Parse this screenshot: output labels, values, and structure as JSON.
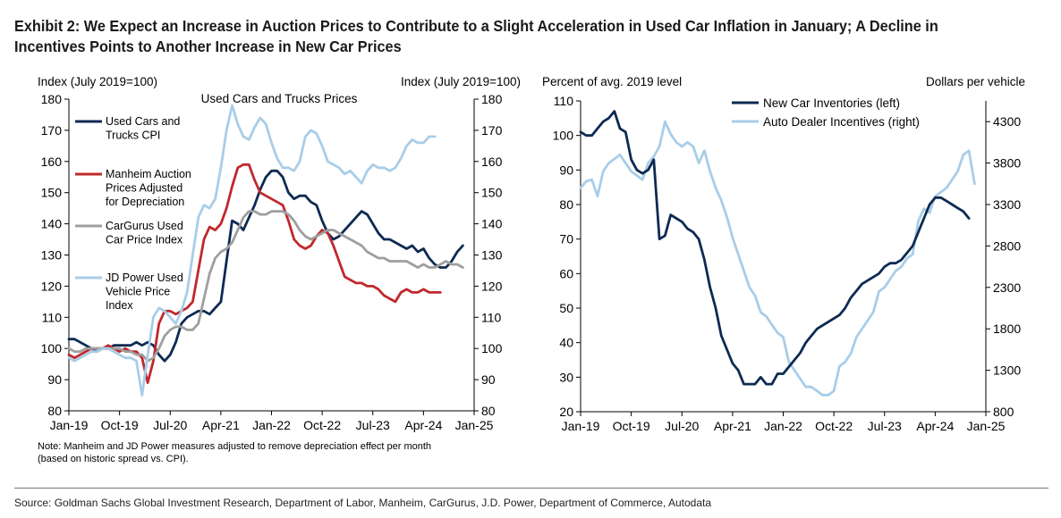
{
  "title": "Exhibit 2: We Expect an Increase in Auction Prices to Contribute to a Slight Acceleration in Used Car Inflation in January; A Decline in Incentives Points to Another Increase in New Car Prices",
  "source": "Source: Goldman Sachs Global Investment Research, Department of Labor, Manheim, CarGurus, J.D. Power, Department of Commerce, Autodata",
  "colors": {
    "navy": "#0d2a52",
    "red": "#c0282d",
    "gray": "#9f9f9f",
    "light_blue": "#a8cde8"
  },
  "chart_data": [
    {
      "type": "line",
      "title": "Used Cars and Trucks Prices",
      "ylabel_left": "Index (July 2019=100)",
      "ylabel_right": "Index (July 2019=100)",
      "ylim": [
        80,
        180
      ],
      "yticks": [
        80,
        90,
        100,
        110,
        120,
        130,
        140,
        150,
        160,
        170,
        180
      ],
      "xlim": [
        "2019-01",
        "2025-01"
      ],
      "xticks": [
        "Jan-19",
        "Oct-19",
        "Jul-20",
        "Apr-21",
        "Jan-22",
        "Oct-22",
        "Jul-23",
        "Apr-24",
        "Jan-25"
      ],
      "note_lines": [
        "Note: Manheim and JD Power measures adjusted to remove depreciation effect per month",
        "(based on historic spread vs. CPI)."
      ],
      "series": [
        {
          "name": "Used Cars and Trucks CPI",
          "legend_lines": [
            "Used Cars and",
            "Trucks CPI"
          ],
          "color": "#0d2a52",
          "start": "2019-01",
          "freq": "monthly",
          "values": [
            103,
            103,
            102,
            101,
            100,
            99,
            100,
            100,
            101,
            101,
            101,
            101,
            102,
            101,
            102,
            101,
            98,
            96,
            98,
            102,
            108,
            110,
            111,
            112,
            112,
            111,
            113,
            115,
            128,
            141,
            140,
            138,
            142,
            146,
            151,
            155,
            157,
            157,
            155,
            150,
            148,
            149,
            149,
            147,
            146,
            141,
            137,
            135,
            136,
            138,
            140,
            142,
            144,
            143,
            140,
            137,
            135,
            135,
            134,
            133,
            132,
            133,
            131,
            132,
            129,
            127,
            126,
            126,
            128,
            131,
            133
          ]
        },
        {
          "name": "Manheim Auction Prices Adjusted for Depreciation",
          "legend_lines": [
            "Manheim Auction",
            "Prices Adjusted",
            "for Depreciation"
          ],
          "color": "#c0282d",
          "start": "2019-01",
          "freq": "monthly",
          "values": [
            98,
            97,
            98,
            99,
            100,
            100,
            100,
            101,
            100,
            99,
            100,
            99,
            99,
            97,
            89,
            96,
            108,
            112,
            112,
            111,
            112,
            113,
            115,
            125,
            135,
            139,
            138,
            140,
            145,
            152,
            158,
            159,
            159,
            154,
            150,
            149,
            148,
            147,
            146,
            141,
            135,
            133,
            132,
            133,
            136,
            138,
            137,
            133,
            128,
            123,
            122,
            121,
            121,
            120,
            120,
            119,
            117,
            116,
            115,
            118,
            119,
            118,
            118,
            119,
            118,
            118,
            118
          ]
        },
        {
          "name": "CarGurus Used Car Price Index",
          "legend_lines": [
            "CarGurus Used",
            "Car Price Index"
          ],
          "color": "#9f9f9f",
          "start": "2019-01",
          "freq": "monthly",
          "values": [
            100,
            99,
            99,
            100,
            100,
            100,
            100,
            100,
            100,
            100,
            99,
            99,
            98,
            98,
            96,
            97,
            100,
            104,
            106,
            107,
            107,
            106,
            106,
            108,
            116,
            124,
            129,
            131,
            132,
            134,
            138,
            142,
            144,
            144,
            143,
            143,
            144,
            144,
            144,
            143,
            141,
            138,
            136,
            135,
            136,
            137,
            138,
            138,
            137,
            136,
            135,
            134,
            133,
            131,
            130,
            129,
            129,
            128,
            128,
            128,
            128,
            127,
            126,
            127,
            126,
            126,
            127,
            128,
            127,
            127,
            126
          ]
        },
        {
          "name": "JD Power Used Vehicle Price Index",
          "legend_lines": [
            "JD Power Used",
            "Vehicle Price",
            "Index"
          ],
          "color": "#a8cde8",
          "start": "2019-01",
          "freq": "monthly",
          "values": [
            97,
            96,
            97,
            98,
            99,
            99,
            100,
            100,
            99,
            98,
            97,
            97,
            96,
            85,
            98,
            110,
            113,
            112,
            110,
            108,
            112,
            118,
            130,
            142,
            146,
            145,
            148,
            158,
            170,
            178,
            172,
            168,
            167,
            171,
            174,
            172,
            166,
            161,
            158,
            158,
            157,
            160,
            168,
            170,
            169,
            165,
            160,
            159,
            158,
            156,
            157,
            155,
            153,
            157,
            159,
            158,
            158,
            157,
            158,
            161,
            165,
            167,
            166,
            166,
            168,
            168
          ]
        }
      ]
    },
    {
      "type": "line",
      "ylabel_left": "Percent of avg. 2019 level",
      "ylabel_right": "Dollars per vehicle",
      "ylim_left": [
        20,
        110
      ],
      "yticks_left": [
        20,
        30,
        40,
        50,
        60,
        70,
        80,
        90,
        100,
        110
      ],
      "ylim_right": [
        800,
        4550
      ],
      "yticks_right": [
        800,
        1300,
        1800,
        2300,
        2800,
        3300,
        3800,
        4300
      ],
      "xlim": [
        "2019-01",
        "2025-01"
      ],
      "xticks": [
        "Jan-19",
        "Oct-19",
        "Jul-20",
        "Apr-21",
        "Jan-22",
        "Oct-22",
        "Jul-23",
        "Apr-24",
        "Jan-25"
      ],
      "legend_position": "top",
      "series": [
        {
          "name": "New Car Inventories (left)",
          "axis": "left",
          "color": "#0d2a52",
          "start": "2019-01",
          "freq": "monthly",
          "values": [
            101,
            100,
            100,
            102,
            104,
            105,
            107,
            102,
            101,
            93,
            90,
            89,
            90,
            93,
            70,
            71,
            77,
            76,
            75,
            73,
            72,
            70,
            64,
            56,
            50,
            42,
            38,
            34,
            32,
            28,
            28,
            28,
            30,
            28,
            28,
            31,
            31,
            33,
            35,
            37,
            40,
            42,
            44,
            45,
            46,
            47,
            48,
            50,
            53,
            55,
            57,
            58,
            59,
            60,
            62,
            63,
            63,
            64,
            66,
            68,
            72,
            76,
            80,
            82,
            82,
            81,
            80,
            79,
            78,
            76
          ]
        },
        {
          "name": "Auto Dealer Incentives (right)",
          "axis": "right",
          "color": "#a8cde8",
          "start": "2019-01",
          "freq": "monthly",
          "values": [
            3500,
            3580,
            3600,
            3400,
            3700,
            3800,
            3850,
            3900,
            3800,
            3700,
            3650,
            3600,
            3800,
            3880,
            4000,
            4300,
            4150,
            4050,
            4000,
            4050,
            4000,
            3800,
            3950,
            3700,
            3500,
            3350,
            3150,
            2900,
            2700,
            2500,
            2300,
            2200,
            2000,
            1950,
            1850,
            1750,
            1700,
            1400,
            1300,
            1200,
            1100,
            1100,
            1050,
            1000,
            1000,
            1050,
            1350,
            1400,
            1500,
            1700,
            1800,
            1900,
            2000,
            2250,
            2300,
            2400,
            2500,
            2550,
            2650,
            2700,
            3100,
            3250,
            3200,
            3400,
            3450,
            3500,
            3600,
            3700,
            3900,
            3950,
            3550
          ]
        }
      ]
    }
  ]
}
